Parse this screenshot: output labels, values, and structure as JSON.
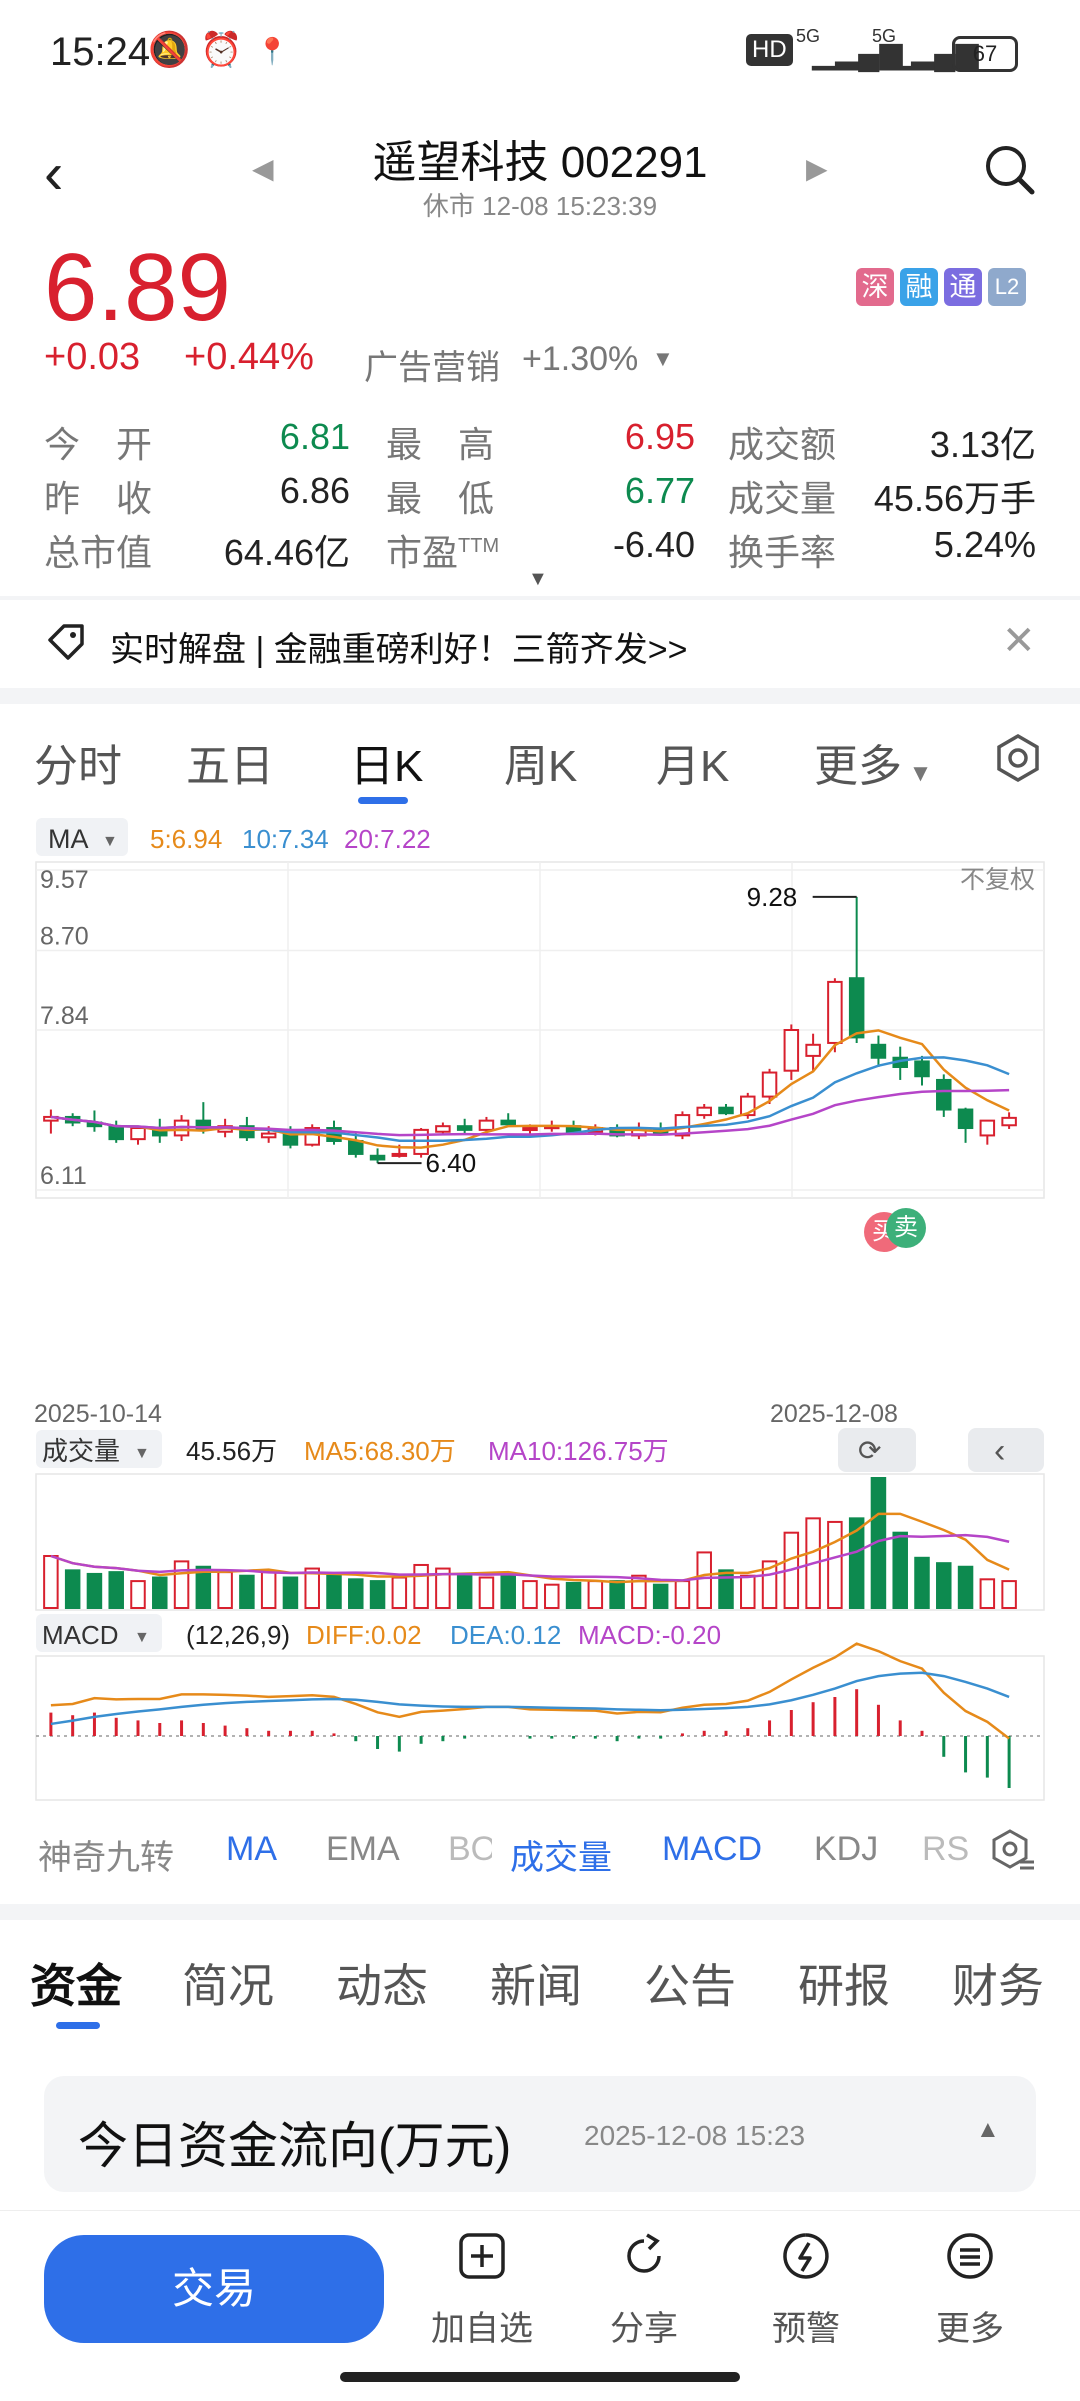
{
  "status": {
    "time": "15:24",
    "battery": "67",
    "network_a": "5G",
    "network_b": "5G",
    "hd_label": "HD"
  },
  "header": {
    "title": "遥望科技 002291",
    "subtitle": "休市 12-08 15:23:39"
  },
  "quote": {
    "price": "6.89",
    "change": "+0.03",
    "change_pct": "+0.44%",
    "sector_name": "广告营销",
    "sector_pct": "+1.30%",
    "badges": [
      "深",
      "融",
      "通",
      "L2"
    ],
    "badge_colors": [
      "#e26a8d",
      "#3aa2e8",
      "#7b6de0",
      "#8fa9cc"
    ]
  },
  "stats": {
    "open_label": "今　开",
    "open": "6.81",
    "high_label": "最　高",
    "high": "6.95",
    "amount_label": "成交额",
    "amount": "3.13亿",
    "prev_label": "昨　收",
    "prev": "6.86",
    "low_label": "最　低",
    "low": "6.77",
    "volume_label": "成交量",
    "volume": "45.56万手",
    "mcap_label": "总市值",
    "mcap": "64.46亿",
    "pe_label": "市盈",
    "pe_sup": "TTM",
    "pe": "-6.40",
    "turnover_label": "换手率",
    "turnover": "5.24%"
  },
  "banner": {
    "text": "实时解盘 | 金融重磅利好！三箭齐发>>"
  },
  "kline_tabs": {
    "minute": "分时",
    "five_day": "五日",
    "day": "日K",
    "week": "周K",
    "month": "月K",
    "more": "更多"
  },
  "chart": {
    "ma_selector": "MA",
    "ma5": "5:6.94",
    "ma10": "10:7.34",
    "ma20": "20:7.22",
    "fq_label": "不复权",
    "y_ticks": [
      "9.57",
      "8.70",
      "7.84",
      "6.11"
    ],
    "y_tick_values": [
      9.57,
      8.7,
      7.84,
      6.11
    ],
    "max_label": "9.28",
    "min_label": "6.40",
    "date_start": "2025-10-14",
    "date_end": "2025-12-08",
    "vol_selector": "成交量",
    "vol_value": "45.56万",
    "vol_ma5": "MA5:68.30万",
    "vol_ma10": "MA10:126.75万",
    "macd_selector": "MACD",
    "macd_params": "(12,26,9)",
    "macd_diff": "DIFF:0.02",
    "macd_dea": "DEA:0.12",
    "macd_val": "MACD:-0.20",
    "buy_label": "买",
    "sell_label": "卖",
    "colors": {
      "up": "#d8202e",
      "down": "#0d8a4f",
      "ma5": "#e68a1a",
      "ma10": "#3a8fd0",
      "ma20": "#b545c8"
    }
  },
  "chart_data": {
    "type": "candlestick",
    "ylim": [
      6.11,
      9.57
    ],
    "candles": [
      [
        6.86,
        6.98,
        6.72,
        6.9
      ],
      [
        6.9,
        6.94,
        6.8,
        6.84
      ],
      [
        6.84,
        6.97,
        6.74,
        6.8
      ],
      [
        6.8,
        6.86,
        6.62,
        6.66
      ],
      [
        6.66,
        6.8,
        6.6,
        6.78
      ],
      [
        6.78,
        6.88,
        6.62,
        6.7
      ],
      [
        6.7,
        6.92,
        6.64,
        6.86
      ],
      [
        6.86,
        7.06,
        6.72,
        6.76
      ],
      [
        6.74,
        6.88,
        6.68,
        6.8
      ],
      [
        6.8,
        6.9,
        6.64,
        6.68
      ],
      [
        6.68,
        6.8,
        6.62,
        6.72
      ],
      [
        6.72,
        6.8,
        6.56,
        6.6
      ],
      [
        6.6,
        6.82,
        6.58,
        6.78
      ],
      [
        6.78,
        6.86,
        6.6,
        6.64
      ],
      [
        6.64,
        6.72,
        6.46,
        6.5
      ],
      [
        6.48,
        6.56,
        6.4,
        6.44
      ],
      [
        6.48,
        6.6,
        6.46,
        6.5
      ],
      [
        6.5,
        6.78,
        6.46,
        6.76
      ],
      [
        6.74,
        6.84,
        6.7,
        6.8
      ],
      [
        6.8,
        6.88,
        6.72,
        6.76
      ],
      [
        6.76,
        6.9,
        6.7,
        6.86
      ],
      [
        6.86,
        6.94,
        6.8,
        6.82
      ],
      [
        6.76,
        6.82,
        6.7,
        6.78
      ],
      [
        6.78,
        6.86,
        6.74,
        6.8
      ],
      [
        6.8,
        6.86,
        6.72,
        6.74
      ],
      [
        6.74,
        6.82,
        6.7,
        6.78
      ],
      [
        6.78,
        6.82,
        6.68,
        6.7
      ],
      [
        6.7,
        6.84,
        6.66,
        6.78
      ],
      [
        6.76,
        6.84,
        6.7,
        6.72
      ],
      [
        6.7,
        6.96,
        6.66,
        6.92
      ],
      [
        6.92,
        7.04,
        6.88,
        7.0
      ],
      [
        7.0,
        7.04,
        6.92,
        6.94
      ],
      [
        6.92,
        7.16,
        6.88,
        7.12
      ],
      [
        7.12,
        7.42,
        7.04,
        7.38
      ],
      [
        7.4,
        7.9,
        7.3,
        7.84
      ],
      [
        7.56,
        7.8,
        7.4,
        7.68
      ],
      [
        7.7,
        8.4,
        7.6,
        8.36
      ],
      [
        8.4,
        9.28,
        7.7,
        7.76
      ],
      [
        7.68,
        7.78,
        7.44,
        7.54
      ],
      [
        7.54,
        7.66,
        7.3,
        7.44
      ],
      [
        7.5,
        7.56,
        7.24,
        7.34
      ],
      [
        7.3,
        7.36,
        6.9,
        6.98
      ],
      [
        6.98,
        7.0,
        6.62,
        6.78
      ],
      [
        6.7,
        6.86,
        6.6,
        6.86
      ],
      [
        6.81,
        6.95,
        6.77,
        6.89
      ]
    ],
    "volume": [
      58,
      42,
      38,
      40,
      30,
      34,
      52,
      46,
      40,
      36,
      40,
      34,
      44,
      36,
      32,
      30,
      34,
      48,
      44,
      36,
      34,
      38,
      30,
      26,
      28,
      30,
      30,
      36,
      26,
      30,
      62,
      42,
      36,
      52,
      84,
      100,
      96,
      100,
      145,
      84,
      56,
      50,
      46,
      32,
      30
    ],
    "macd_hist": [
      0.09,
      0.08,
      0.09,
      0.07,
      0.06,
      0.05,
      0.06,
      0.05,
      0.04,
      0.03,
      0.02,
      0.02,
      0.02,
      0.01,
      -0.02,
      -0.05,
      -0.06,
      -0.03,
      -0.02,
      -0.01,
      0.0,
      0.0,
      -0.01,
      -0.01,
      -0.01,
      -0.01,
      -0.02,
      -0.01,
      -0.01,
      0.01,
      0.02,
      0.02,
      0.03,
      0.06,
      0.1,
      0.13,
      0.15,
      0.18,
      0.12,
      0.06,
      0.02,
      -0.08,
      -0.14,
      -0.16,
      -0.2
    ]
  },
  "indicator_tabs": [
    "神奇九转",
    "MA",
    "EMA",
    "BOLL",
    "成交量",
    "MACD",
    "KDJ",
    "RSI"
  ],
  "detail_tabs": [
    "资金",
    "简况",
    "动态",
    "新闻",
    "公告",
    "研报",
    "财务"
  ],
  "funds": {
    "title": "今日资金流向(万元)",
    "time": "2025-12-08 15:23"
  },
  "bottom_bar": {
    "trade": "交易",
    "add": "加自选",
    "share": "分享",
    "alert": "预警",
    "more": "更多"
  }
}
